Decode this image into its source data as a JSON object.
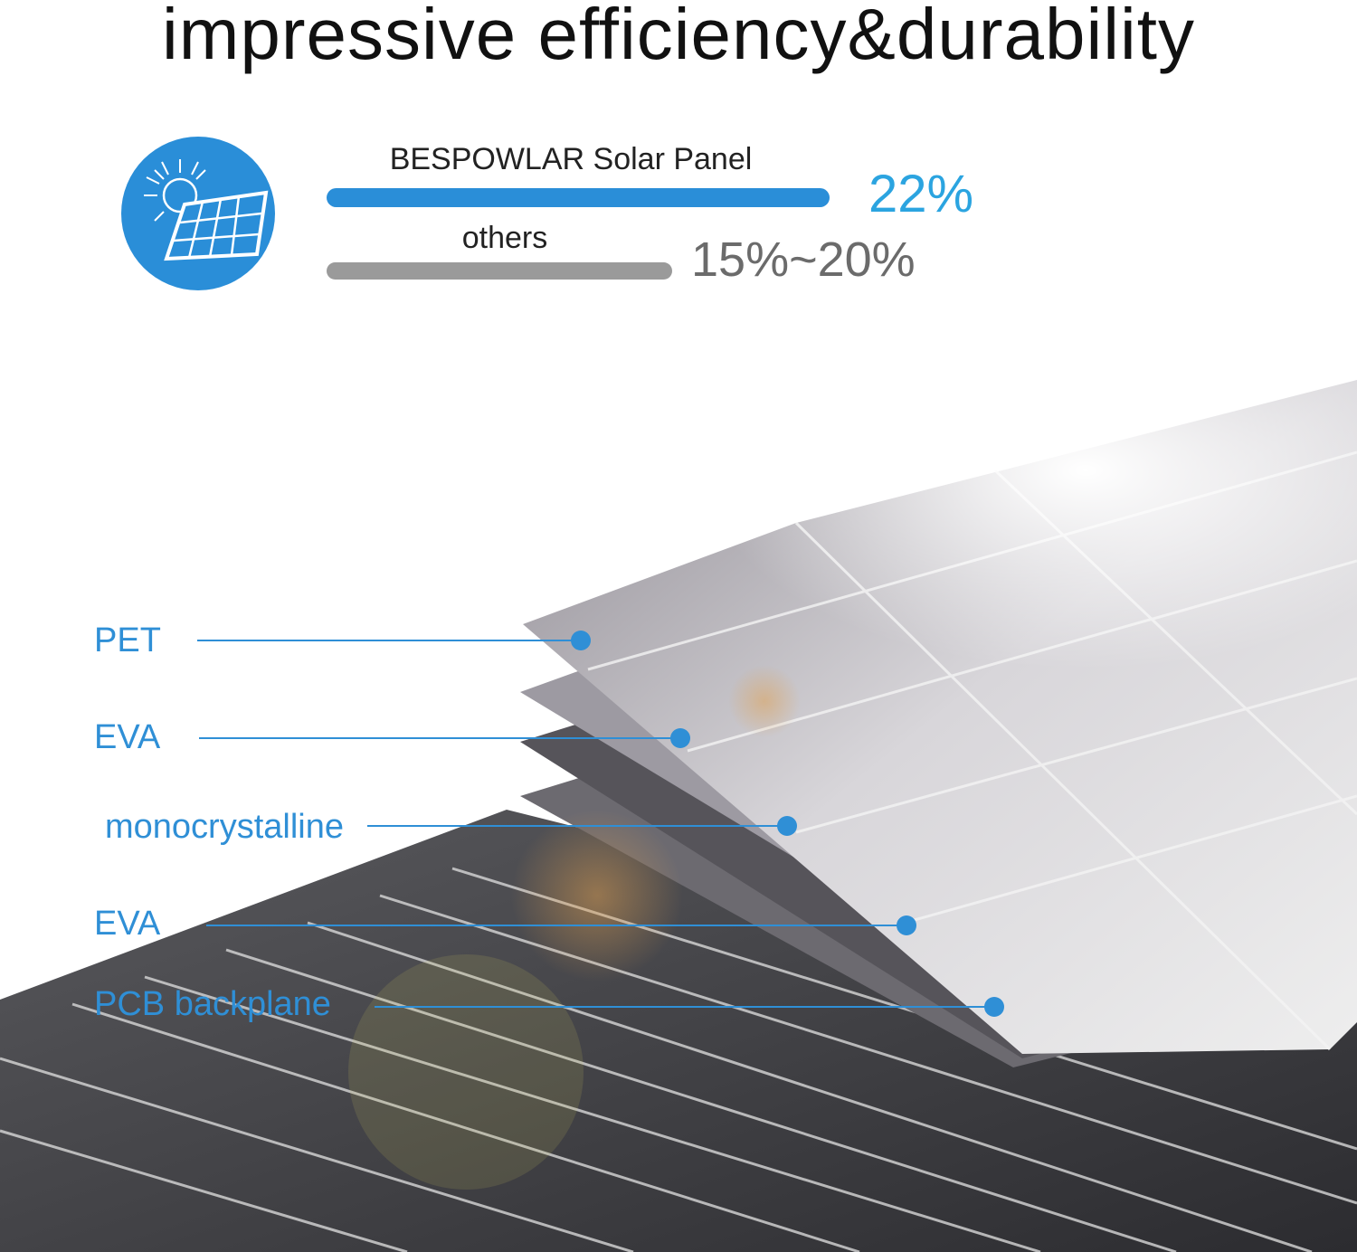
{
  "title": "impressive efficiency&durability",
  "comparison": {
    "icon": "solar-panel-sun-icon",
    "brand": {
      "label": "BESPOWLAR Solar Panel",
      "value": "22%",
      "efficiency_percent": 22,
      "color": "#2a8ed8"
    },
    "others": {
      "label": "others",
      "value": "15%~20%",
      "efficiency_percent": 20,
      "color": "#9a9a9a"
    }
  },
  "layers": [
    {
      "label": "PET"
    },
    {
      "label": "EVA"
    },
    {
      "label": "monocrystalline"
    },
    {
      "label": "EVA"
    },
    {
      "label": "PCB backplane"
    }
  ],
  "colors": {
    "accent": "#2a8ed8",
    "value_blue": "#2ba4e0",
    "value_gray": "#6b6b6b",
    "label_blue": "#2f8fd6"
  }
}
